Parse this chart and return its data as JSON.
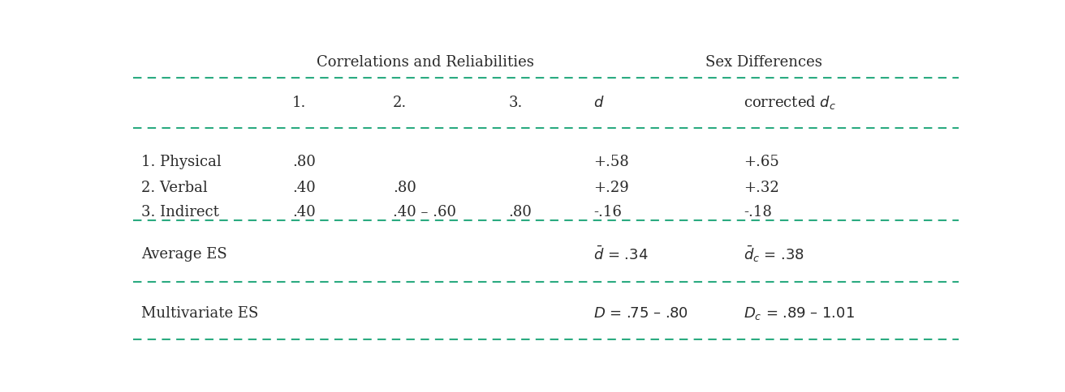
{
  "fig_width": 13.12,
  "fig_height": 4.85,
  "dpi": 100,
  "bg_color": "#ffffff",
  "text_color": "#2a2a2a",
  "dashed_line_color": "#2aaa80",
  "header1_text": "Correlations and Reliabilities",
  "header2_text": "Sex Differences",
  "row_labels": [
    "1. Physical",
    "2. Verbal",
    "3. Indirect"
  ],
  "row_data": [
    [
      ".80",
      "",
      "",
      "+.58",
      "+.65"
    ],
    [
      ".40",
      ".80",
      "",
      "+.29",
      "+.32"
    ],
    [
      ".40",
      ".40 – .60",
      ".80",
      "-.16",
      "-.18"
    ]
  ],
  "avg_label": "Average ES",
  "multi_label": "Multivariate ES",
  "font_family": "serif",
  "font_size": 13.0
}
